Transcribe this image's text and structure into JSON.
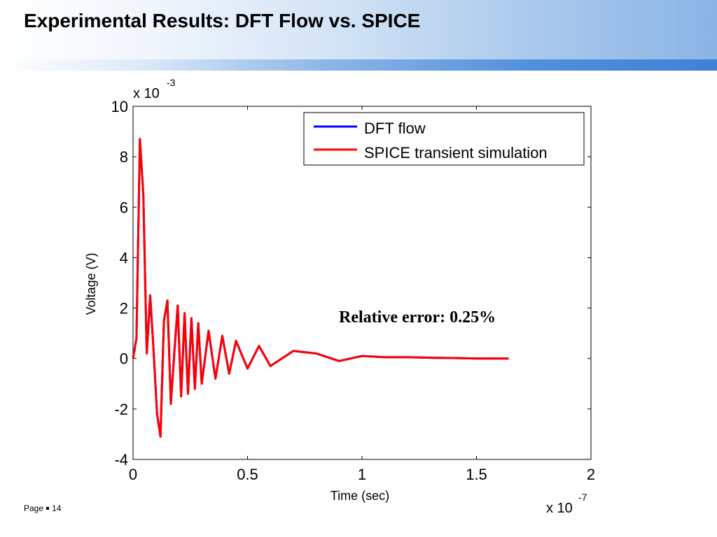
{
  "slide": {
    "title": "Experimental Results: DFT Flow vs. SPICE",
    "footer_label": "Page",
    "page_number": "14"
  },
  "colors": {
    "dft_flow": "#0000ff",
    "spice": "#ff0000",
    "header_accent": "#4f8fdb"
  },
  "chart_data": {
    "type": "line",
    "title": "",
    "xlabel": "Time (sec)",
    "ylabel": "Voltage (V)",
    "x_multiplier": "x 10",
    "x_multiplier_exp": "-7",
    "y_multiplier": "x 10",
    "y_multiplier_exp": "-3",
    "xlim": [
      0,
      2
    ],
    "ylim": [
      -4,
      10
    ],
    "xticks": [
      "0",
      "0.5",
      "1",
      "1.5",
      "2"
    ],
    "yticks": [
      "-4",
      "-2",
      "0",
      "2",
      "4",
      "6",
      "8",
      "10"
    ],
    "grid": false,
    "legend_position": "top-right",
    "annotation": "Relative error: 0.25%",
    "x_units_note": "x values in units of 1e-7 sec; y values in units of 1e-3 V",
    "series": [
      {
        "name": "DFT flow",
        "color": "#0000ff",
        "x": [
          0,
          0.015,
          0.03,
          0.045,
          0.06,
          0.075,
          0.09,
          0.105,
          0.12,
          0.135,
          0.15,
          0.165,
          0.18,
          0.195,
          0.21,
          0.225,
          0.24,
          0.255,
          0.27,
          0.285,
          0.3,
          0.33,
          0.36,
          0.39,
          0.42,
          0.45,
          0.5,
          0.55,
          0.6,
          0.7,
          0.8,
          0.9,
          1.0,
          1.1,
          1.2,
          1.3,
          1.4,
          1.5,
          1.6,
          1.64
        ],
        "y": [
          0.0,
          0.8,
          8.7,
          6.5,
          0.2,
          2.5,
          0.3,
          -2.2,
          -3.1,
          1.5,
          2.3,
          -1.8,
          0.2,
          2.1,
          -1.5,
          1.8,
          -1.4,
          1.6,
          -1.2,
          1.4,
          -1.0,
          1.1,
          -0.8,
          0.9,
          -0.6,
          0.7,
          -0.4,
          0.5,
          -0.3,
          0.3,
          0.2,
          -0.1,
          0.1,
          0.05,
          0.05,
          0.03,
          0.02,
          0.0,
          0.0,
          0.0
        ]
      },
      {
        "name": "SPICE transient simulation",
        "color": "#ff0000",
        "x": [
          0,
          0.015,
          0.03,
          0.045,
          0.06,
          0.075,
          0.09,
          0.105,
          0.12,
          0.135,
          0.15,
          0.165,
          0.18,
          0.195,
          0.21,
          0.225,
          0.24,
          0.255,
          0.27,
          0.285,
          0.3,
          0.33,
          0.36,
          0.39,
          0.42,
          0.45,
          0.5,
          0.55,
          0.6,
          0.7,
          0.8,
          0.9,
          1.0,
          1.1,
          1.2,
          1.3,
          1.4,
          1.5,
          1.6,
          1.64
        ],
        "y": [
          0.0,
          0.8,
          8.7,
          6.5,
          0.2,
          2.5,
          0.3,
          -2.2,
          -3.1,
          1.5,
          2.3,
          -1.8,
          0.2,
          2.1,
          -1.5,
          1.8,
          -1.4,
          1.6,
          -1.2,
          1.4,
          -1.0,
          1.1,
          -0.8,
          0.9,
          -0.6,
          0.7,
          -0.4,
          0.5,
          -0.3,
          0.3,
          0.2,
          -0.1,
          0.1,
          0.05,
          0.05,
          0.03,
          0.02,
          0.0,
          0.0,
          0.0
        ]
      }
    ]
  }
}
